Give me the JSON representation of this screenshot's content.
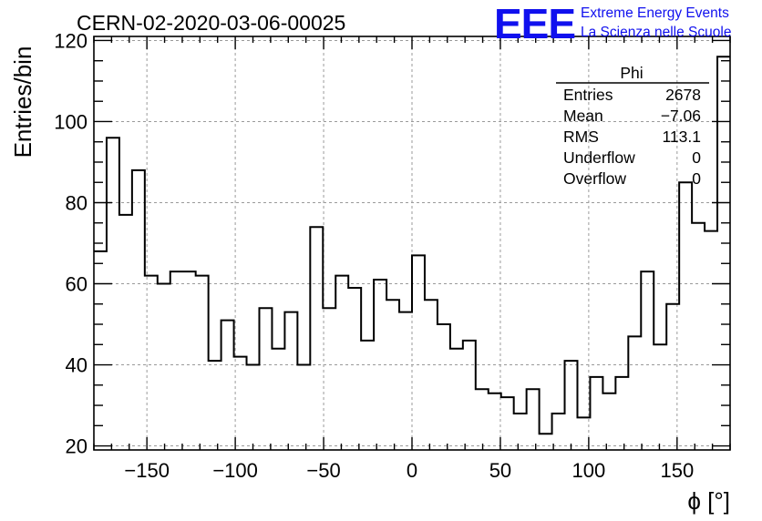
{
  "header": {
    "run_title": "CERN-02-2020-03-06-00025",
    "logo_letters": "EEE",
    "logo_line1": "Extreme Energy Events",
    "logo_line2": "La Scienza nelle Scuole"
  },
  "stats_box": {
    "title": "Phi",
    "rows": [
      {
        "label": "Entries",
        "value": "2678"
      },
      {
        "label": "Mean",
        "value": "−7.06"
      },
      {
        "label": "RMS",
        "value": "113.1"
      },
      {
        "label": "Underflow",
        "value": "0"
      },
      {
        "label": "Overflow",
        "value": "0"
      }
    ]
  },
  "colors": {
    "line": "#000000",
    "grid": "#9a9a9a",
    "logo": "#1010ee",
    "background": "#ffffff"
  },
  "chart_data": {
    "type": "histogram",
    "xlabel": "ϕ [°]",
    "ylabel": "Entries/bin",
    "xlim": [
      -180,
      180
    ],
    "ylim": [
      19,
      121
    ],
    "grid": true,
    "x_ticks": [
      -150,
      -100,
      -50,
      0,
      50,
      100,
      150
    ],
    "x_tick_labels": [
      "−150",
      "−100",
      "−50",
      "0",
      "50",
      "100",
      "150"
    ],
    "y_ticks": [
      20,
      40,
      60,
      80,
      100,
      120
    ],
    "y_tick_labels": [
      "20",
      "40",
      "60",
      "80",
      "100",
      "120"
    ],
    "bin_edges_start": -180,
    "bin_width": 7.2,
    "values": [
      68,
      96,
      77,
      88,
      62,
      60,
      63,
      63,
      62,
      41,
      51,
      42,
      40,
      54,
      44,
      53,
      40,
      74,
      54,
      62,
      59,
      46,
      61,
      56,
      53,
      67,
      56,
      50,
      44,
      46,
      34,
      33,
      32,
      28,
      34,
      23,
      28,
      41,
      27,
      37,
      33,
      37,
      47,
      63,
      45,
      55,
      85,
      75,
      73,
      116
    ]
  }
}
